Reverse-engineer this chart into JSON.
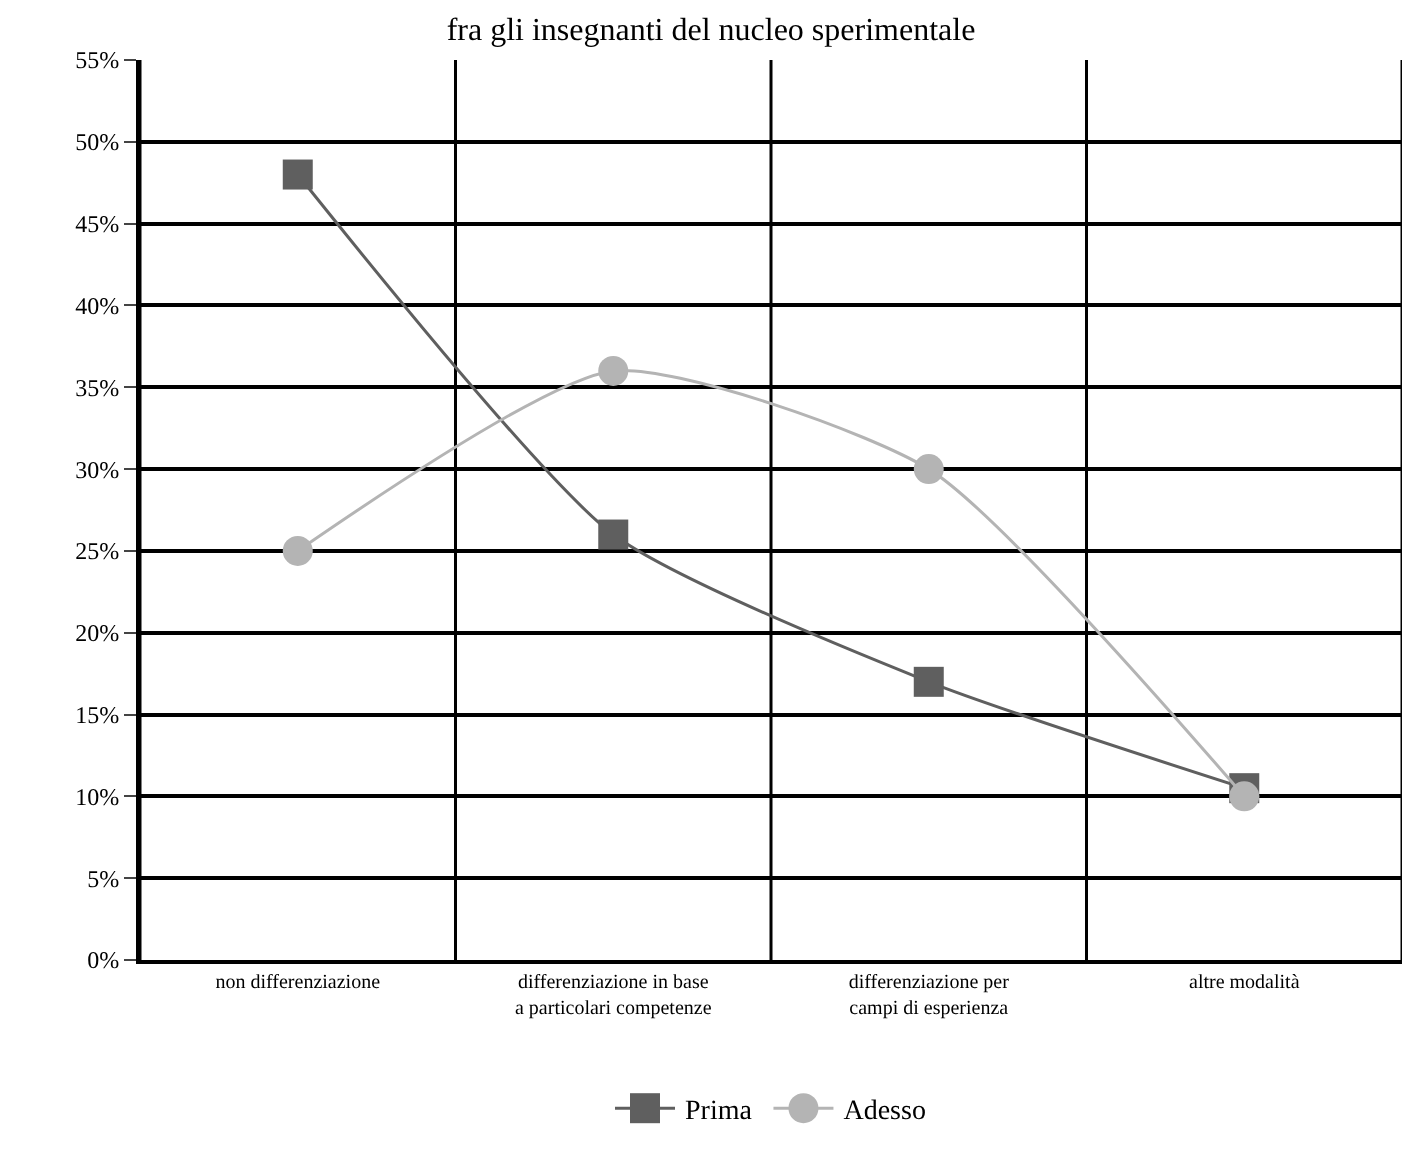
{
  "chart_data": {
    "type": "line",
    "title": "fra gli insegnanti del nucleo sperimentale",
    "categories": [
      "non differenziazione",
      "differenziazione in base\na particolari competenze",
      "differenziazione per\ncampi di esperienza",
      "altre modalità"
    ],
    "series": [
      {
        "name": "Prima",
        "color": "#5f5f5f",
        "marker": "square",
        "values": [
          48,
          26,
          17,
          10.5
        ]
      },
      {
        "name": "Adesso",
        "color": "#b4b4b4",
        "marker": "circle",
        "values": [
          25,
          36,
          30,
          10
        ]
      }
    ],
    "ylim": [
      0,
      55
    ],
    "yticks": [
      {
        "value": 0,
        "label": "0%"
      },
      {
        "value": 5,
        "label": "5%"
      },
      {
        "value": 10,
        "label": "10%"
      },
      {
        "value": 15,
        "label": "15%"
      },
      {
        "value": 20,
        "label": "20%"
      },
      {
        "value": 25,
        "label": "25%"
      },
      {
        "value": 30,
        "label": "30%"
      },
      {
        "value": 35,
        "label": "35%"
      },
      {
        "value": 40,
        "label": "40%"
      },
      {
        "value": 45,
        "label": "45%"
      },
      {
        "value": 50,
        "label": "50%"
      },
      {
        "value": 55,
        "label": "55%"
      }
    ],
    "grid": true,
    "legend": "bottom",
    "line_style": "solid"
  }
}
